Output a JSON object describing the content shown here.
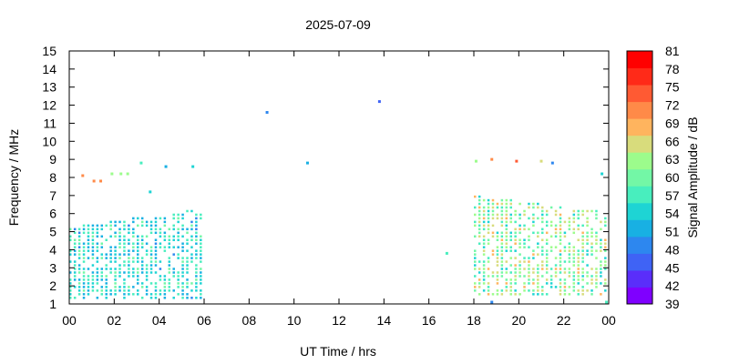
{
  "chart_data": {
    "type": "heatmap",
    "title": "2025-07-09",
    "xlabel": "UT Time / hrs",
    "ylabel": "Frequency / MHz",
    "colorbar_label": "Signal Amplitude / dB",
    "x_ticks": [
      "00",
      "02",
      "04",
      "06",
      "08",
      "10",
      "12",
      "14",
      "16",
      "18",
      "20",
      "22",
      "00"
    ],
    "y_ticks": [
      "1",
      "2",
      "3",
      "4",
      "5",
      "6",
      "7",
      "8",
      "9",
      "10",
      "11",
      "12",
      "13",
      "14",
      "15"
    ],
    "xlim": [
      0,
      24
    ],
    "ylim": [
      1,
      15
    ],
    "grid": false,
    "colorbar_ticks": [
      "39",
      "42",
      "45",
      "48",
      "51",
      "54",
      "57",
      "60",
      "63",
      "66",
      "69",
      "72",
      "75",
      "78",
      "81"
    ],
    "colorbar_range": [
      39,
      81
    ],
    "colorscale": [
      "#7f00ff",
      "#5a2efa",
      "#3f63f5",
      "#2d87ef",
      "#18b0e3",
      "#1ed4d4",
      "#48eebe",
      "#73f7a6",
      "#9cfc8c",
      "#d8dc7c",
      "#ffb45e",
      "#ff8a48",
      "#ff5a33",
      "#ff2a18",
      "#ff0000"
    ],
    "regions": [
      {
        "x": [
          0.0,
          6.0
        ],
        "y_low": 1.3,
        "y_high_start": 5.2,
        "y_high_end": 6.3,
        "values": [
          50,
          60
        ]
      },
      {
        "x": [
          18.0,
          24.0
        ],
        "y_low": 1.5,
        "y_high_start": 7.0,
        "y_high_end": 6.0,
        "values": [
          54,
          68
        ]
      }
    ],
    "points": [
      {
        "x": 0.6,
        "y": 8.1,
        "v": 72
      },
      {
        "x": 1.1,
        "y": 7.8,
        "v": 72
      },
      {
        "x": 1.4,
        "y": 7.8,
        "v": 72
      },
      {
        "x": 1.9,
        "y": 8.2,
        "v": 63
      },
      {
        "x": 2.3,
        "y": 8.2,
        "v": 63
      },
      {
        "x": 2.6,
        "y": 8.2,
        "v": 63
      },
      {
        "x": 3.2,
        "y": 8.8,
        "v": 57
      },
      {
        "x": 3.6,
        "y": 7.2,
        "v": 54
      },
      {
        "x": 4.3,
        "y": 8.6,
        "v": 51
      },
      {
        "x": 5.5,
        "y": 8.6,
        "v": 54
      },
      {
        "x": 8.8,
        "y": 11.6,
        "v": 48
      },
      {
        "x": 10.6,
        "y": 8.8,
        "v": 51
      },
      {
        "x": 13.8,
        "y": 12.2,
        "v": 45
      },
      {
        "x": 16.8,
        "y": 3.8,
        "v": 57
      },
      {
        "x": 18.1,
        "y": 8.9,
        "v": 63
      },
      {
        "x": 18.8,
        "y": 9.0,
        "v": 72
      },
      {
        "x": 19.9,
        "y": 8.9,
        "v": 75
      },
      {
        "x": 21.0,
        "y": 8.9,
        "v": 66
      },
      {
        "x": 21.5,
        "y": 8.8,
        "v": 48
      },
      {
        "x": 23.7,
        "y": 8.2,
        "v": 54
      },
      {
        "x": 18.8,
        "y": 1.1,
        "v": 48
      },
      {
        "x": 23.9,
        "y": 1.1,
        "v": 57
      }
    ]
  }
}
